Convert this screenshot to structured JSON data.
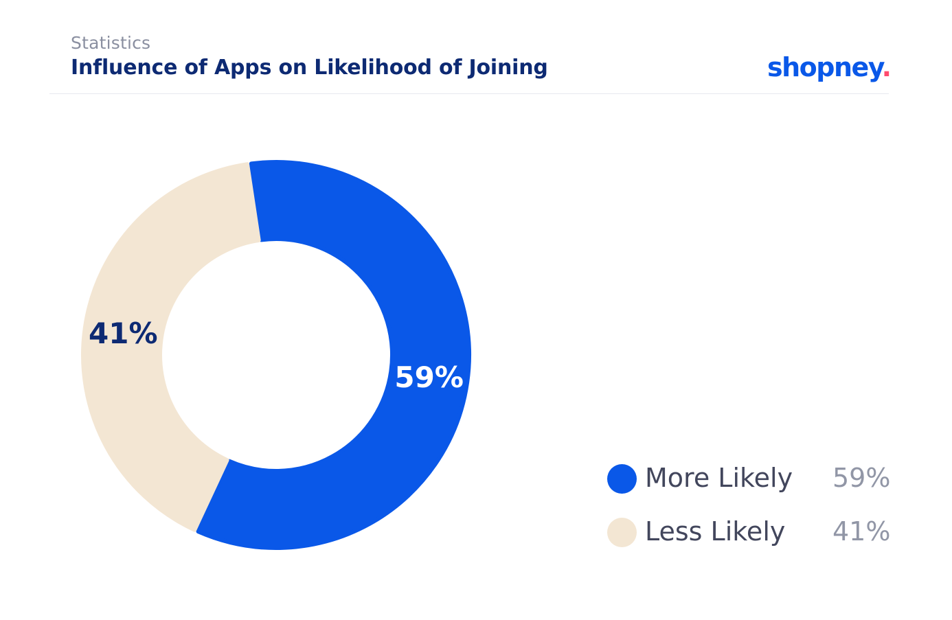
{
  "header": {
    "kicker": "Statistics",
    "title": "Influence of Apps on Likelihood of Joining",
    "logo_text": "shopney",
    "logo_dot": "."
  },
  "colors": {
    "primary": "#0a58e8",
    "secondary": "#f3e6d3",
    "title": "#0d2a73",
    "logo_dot": "#ff4b6e"
  },
  "chart_data": {
    "type": "pie",
    "variant": "donut",
    "series": [
      {
        "name": "More Likely",
        "value": 59,
        "label": "59%",
        "color": "#0a58e8"
      },
      {
        "name": "Less Likely",
        "value": 41,
        "label": "41%",
        "color": "#f3e6d3"
      }
    ],
    "legend": "right-bottom"
  }
}
